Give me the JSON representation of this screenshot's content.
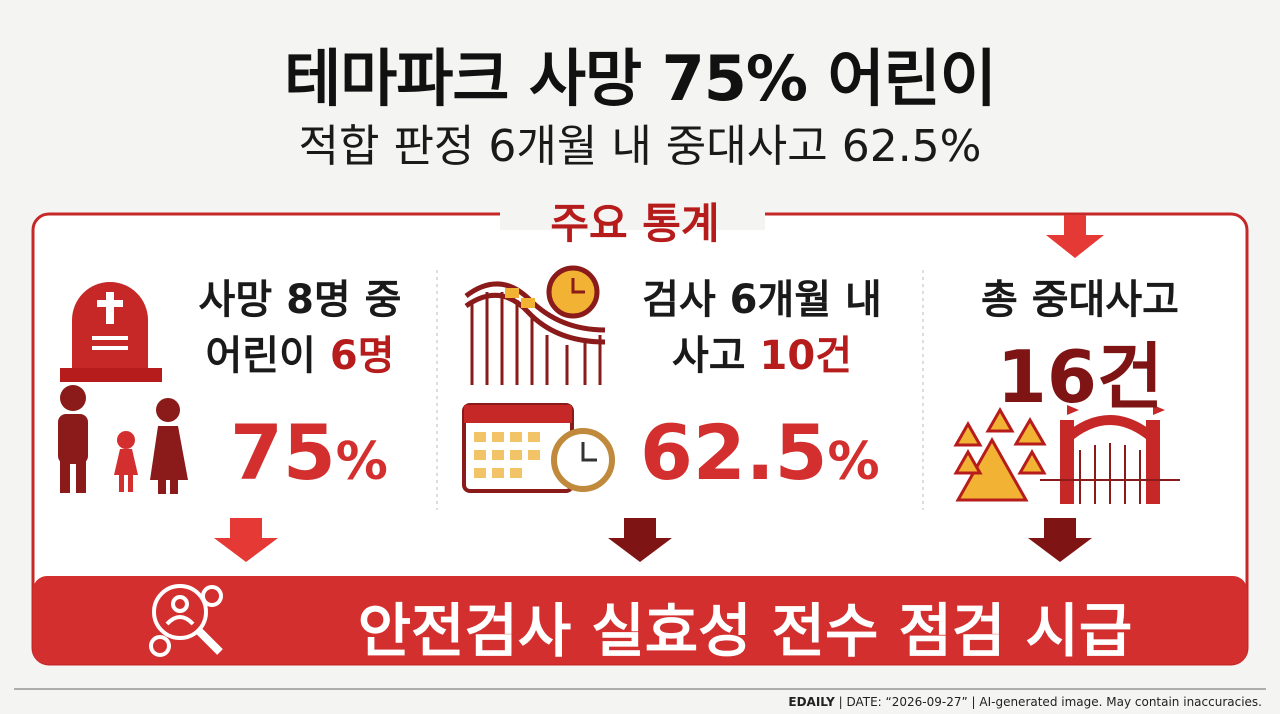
{
  "header": {
    "title": "테마파크 사망 75% 어린이",
    "subtitle": "적합 판정 6개월 내 중대사고 62.5%"
  },
  "section_label": "주요 통계",
  "panels": [
    {
      "line1": "사망 8명 중",
      "line2_text": "어린이",
      "line2_highlight": "6명",
      "stat_number": "75",
      "stat_unit": "%"
    },
    {
      "line1": "검사 6개월 내",
      "line2_text": "사고",
      "line2_highlight": "10건",
      "stat_number": "62.5",
      "stat_unit": "%"
    },
    {
      "line1": "총 중대사고",
      "stat_big": "16건"
    }
  ],
  "banner": "안전검사 실효성 전수 점검 시급",
  "footer": {
    "source": "EDAILY",
    "note": "| DATE: “2026-09-27” | AI-generated image. May contain inaccuracies."
  }
}
